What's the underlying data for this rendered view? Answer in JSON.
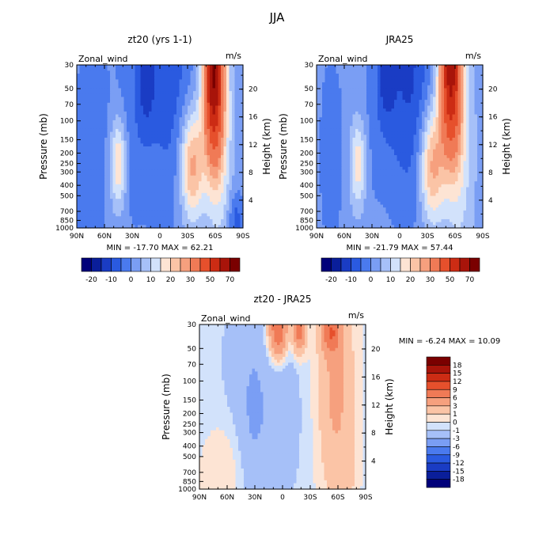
{
  "title": "JJA",
  "colors": {
    "line": "#000000",
    "background": "#ffffff"
  },
  "chart_data": [
    {
      "type": "heatmap",
      "title": "zt20 (yrs 1-1)",
      "corner_left": "Zonal_wind",
      "corner_right": "m/s",
      "ylabel": "Pressure (mb)",
      "ylabel_right": "Height (km)",
      "x_ticks": [
        "90N",
        "60N",
        "30N",
        "0",
        "30S",
        "60S",
        "90S"
      ],
      "y_ticks": [
        "30",
        "50",
        "70",
        "100",
        "150",
        "200",
        "250",
        "300",
        "400",
        "500",
        "700",
        "850",
        "1000"
      ],
      "y_ticks_right": [
        "20",
        "16",
        "12",
        "8",
        "4"
      ],
      "xlim": [
        "90N",
        "90S"
      ],
      "ylim_mb": [
        1000,
        30
      ],
      "stats": "MIN =  -17.70   MAX =  62.21",
      "min": -17.7,
      "max": 62.21,
      "legend": {
        "orientation": "horizontal",
        "levels": [
          -25,
          -20,
          -15,
          -10,
          -5,
          0,
          5,
          10,
          15,
          20,
          25,
          30,
          40,
          50,
          60,
          70
        ],
        "labels": [
          "-20",
          "-10",
          "0",
          "10",
          "20",
          "30",
          "50",
          "70"
        ],
        "colors": [
          "#00007a",
          "#0a1e9a",
          "#1a3cc4",
          "#2a5ae0",
          "#4a7aee",
          "#7a9ef4",
          "#a6c0f8",
          "#d2e2fb",
          "#fde4d4",
          "#fbc4a6",
          "#f6a07e",
          "#f07a56",
          "#e6502c",
          "#cc2c14",
          "#a8140a",
          "#7a0000"
        ]
      }
    },
    {
      "type": "heatmap",
      "title": "JRA25",
      "corner_left": "Zonal_wind",
      "corner_right": "m/s",
      "ylabel": "Pressure (mb)",
      "ylabel_right": "Height (km)",
      "x_ticks": [
        "90N",
        "60N",
        "30N",
        "0",
        "30S",
        "60S",
        "90S"
      ],
      "y_ticks": [
        "30",
        "50",
        "70",
        "100",
        "150",
        "200",
        "250",
        "300",
        "400",
        "500",
        "700",
        "850",
        "1000"
      ],
      "y_ticks_right": [
        "20",
        "16",
        "12",
        "8",
        "4"
      ],
      "xlim": [
        "90N",
        "90S"
      ],
      "ylim_mb": [
        1000,
        30
      ],
      "stats": "MIN =  -21.79   MAX =  57.44",
      "min": -21.79,
      "max": 57.44,
      "legend": {
        "orientation": "horizontal",
        "levels": [
          -25,
          -20,
          -15,
          -10,
          -5,
          0,
          5,
          10,
          15,
          20,
          25,
          30,
          40,
          50,
          60,
          70
        ],
        "labels": [
          "-20",
          "-10",
          "0",
          "10",
          "20",
          "30",
          "50",
          "70"
        ],
        "colors": [
          "#00007a",
          "#0a1e9a",
          "#1a3cc4",
          "#2a5ae0",
          "#4a7aee",
          "#7a9ef4",
          "#a6c0f8",
          "#d2e2fb",
          "#fde4d4",
          "#fbc4a6",
          "#f6a07e",
          "#f07a56",
          "#e6502c",
          "#cc2c14",
          "#a8140a",
          "#7a0000"
        ]
      }
    },
    {
      "type": "heatmap",
      "title": "zt20 - JRA25",
      "corner_left": "Zonal_wind",
      "corner_right": "m/s",
      "ylabel": "Pressure (mb)",
      "ylabel_right": "Height (km)",
      "x_ticks": [
        "90N",
        "60N",
        "30N",
        "0",
        "30S",
        "60S",
        "90S"
      ],
      "y_ticks": [
        "30",
        "50",
        "70",
        "100",
        "150",
        "200",
        "250",
        "300",
        "400",
        "500",
        "700",
        "850",
        "1000"
      ],
      "y_ticks_right": [
        "20",
        "16",
        "12",
        "8",
        "4"
      ],
      "xlim": [
        "90N",
        "90S"
      ],
      "ylim_mb": [
        1000,
        30
      ],
      "stats": "MIN =   -6.24   MAX =   10.09",
      "min": -6.24,
      "max": 10.09,
      "legend": {
        "orientation": "vertical",
        "levels": [
          -21,
          -18,
          -15,
          -12,
          -9,
          -6,
          -3,
          -1,
          0,
          1,
          3,
          6,
          9,
          12,
          15,
          18,
          21
        ],
        "labels": [
          "18",
          "15",
          "12",
          "9",
          "6",
          "3",
          "1",
          "0",
          "-1",
          "-3",
          "-6",
          "-9",
          "-12",
          "-15",
          "-18"
        ],
        "colors": [
          "#00007a",
          "#0a1e9a",
          "#1a3cc4",
          "#2a5ae0",
          "#4a7aee",
          "#7a9ef4",
          "#a6c0f8",
          "#d2e2fb",
          "#fde4d4",
          "#fbc4a6",
          "#f6a07e",
          "#f07a56",
          "#e6502c",
          "#cc2c14",
          "#a8140a",
          "#7a0000"
        ]
      }
    }
  ]
}
